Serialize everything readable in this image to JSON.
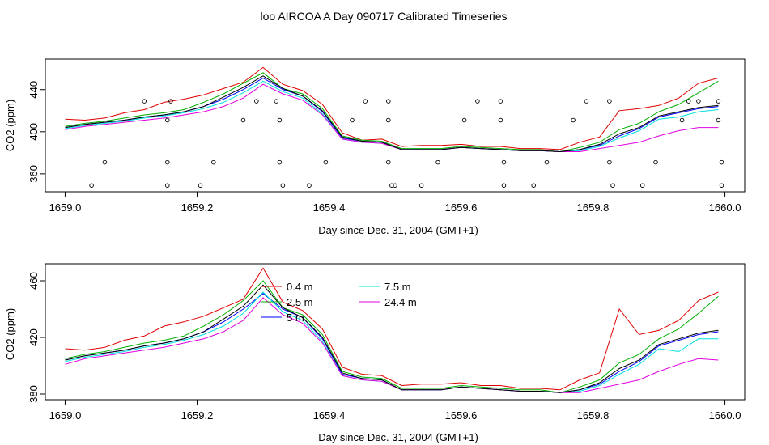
{
  "page": {
    "title": "loo AIRCOA A  Day 090717  Calibrated Timeseries"
  },
  "colors": {
    "0.4 m": "#e00000",
    "2.5 m": "#00b000",
    "5 m": "#0000ff",
    "7.5 m": "#00e0e0",
    "24.4 m": "#e000e0",
    "black": "#000000"
  },
  "chart_data": [
    {
      "type": "line",
      "title": "",
      "xlabel": "Day since Dec. 31, 2004 (GMT+1)",
      "ylabel": "CO2 (ppm)",
      "xlim": [
        1658.97,
        1660.03
      ],
      "ylim": [
        343,
        469
      ],
      "xticks": [
        "1659.0",
        "1659.2",
        "1659.4",
        "1659.6",
        "1659.8",
        "1660.0"
      ],
      "xtick_values": [
        1659.0,
        1659.2,
        1659.4,
        1659.6,
        1659.8,
        1660.0
      ],
      "yticks": [
        "360",
        "400",
        "440"
      ],
      "ytick_values": [
        360,
        400,
        440
      ],
      "x": [
        1659.0,
        1659.03,
        1659.06,
        1659.09,
        1659.12,
        1659.15,
        1659.18,
        1659.21,
        1659.24,
        1659.27,
        1659.3,
        1659.33,
        1659.36,
        1659.39,
        1659.42,
        1659.45,
        1659.48,
        1659.51,
        1659.54,
        1659.57,
        1659.6,
        1659.63,
        1659.66,
        1659.69,
        1659.72,
        1659.75,
        1659.78,
        1659.81,
        1659.84,
        1659.87,
        1659.9,
        1659.93,
        1659.96,
        1659.99
      ],
      "series": [
        {
          "name": "0.4 m",
          "color": "#e00000",
          "values": [
            412,
            411,
            413,
            418,
            421,
            428,
            431,
            435,
            441,
            447,
            461,
            445,
            439,
            426,
            399,
            392,
            393,
            386,
            387,
            387,
            388,
            386,
            386,
            384,
            384,
            383,
            390,
            395,
            420,
            422,
            425,
            432,
            446,
            451
          ]
        },
        {
          "name": "2.5 m",
          "color": "#00b000",
          "values": [
            405,
            408,
            410,
            413,
            416,
            418,
            421,
            428,
            436,
            446,
            456,
            441,
            436,
            422,
            396,
            392,
            391,
            384,
            384,
            384,
            386,
            385,
            384,
            383,
            383,
            381,
            385,
            390,
            402,
            408,
            419,
            426,
            437,
            448
          ]
        },
        {
          "name": "5 m",
          "color": "#0000ff",
          "values": [
            404,
            407,
            409,
            411,
            414,
            416,
            419,
            424,
            431,
            440,
            451,
            440,
            434,
            419,
            394,
            391,
            390,
            383,
            383,
            383,
            385,
            384,
            383,
            382,
            382,
            381,
            383,
            387,
            396,
            403,
            414,
            418,
            422,
            424
          ]
        },
        {
          "name": "7.5 m",
          "color": "#00e0e0",
          "values": [
            403,
            406,
            408,
            410,
            413,
            415,
            418,
            422,
            428,
            437,
            448,
            438,
            432,
            417,
            393,
            390,
            389,
            383,
            383,
            383,
            385,
            384,
            383,
            382,
            382,
            381,
            382,
            386,
            394,
            401,
            412,
            414,
            419,
            421
          ]
        },
        {
          "name": "24.4 m",
          "color": "#e000e0",
          "values": [
            402,
            405,
            407,
            409,
            411,
            413,
            416,
            419,
            424,
            432,
            445,
            436,
            430,
            416,
            393,
            390,
            389,
            383,
            383,
            383,
            385,
            384,
            383,
            382,
            382,
            381,
            381,
            384,
            387,
            390,
            396,
            401,
            404,
            404
          ]
        },
        {
          "name": "",
          "color": "#000000",
          "values": [
            404,
            407,
            409,
            411,
            414,
            416,
            419,
            424,
            433,
            442,
            453,
            441,
            434,
            420,
            395,
            391,
            390,
            383,
            383,
            383,
            385,
            384,
            383,
            382,
            382,
            381,
            383,
            388,
            398,
            404,
            415,
            419,
            423,
            425
          ]
        }
      ],
      "status_points": {
        "x": [
          1659.04,
          1659.06,
          1659.12,
          1659.155,
          1659.155,
          1659.155,
          1659.16,
          1659.205,
          1659.225,
          1659.27,
          1659.29,
          1659.32,
          1659.325,
          1659.325,
          1659.33,
          1659.37,
          1659.395,
          1659.435,
          1659.455,
          1659.49,
          1659.49,
          1659.49,
          1659.495,
          1659.5,
          1659.54,
          1659.565,
          1659.605,
          1659.625,
          1659.66,
          1659.66,
          1659.665,
          1659.665,
          1659.71,
          1659.73,
          1659.77,
          1659.79,
          1659.825,
          1659.825,
          1659.83,
          1659.875,
          1659.895,
          1659.935,
          1659.945,
          1659.96,
          1659.99,
          1659.99,
          1659.995,
          1659.995
        ],
        "y": [
          349,
          371,
          429,
          349,
          371,
          411,
          429,
          349,
          371,
          411,
          429,
          429,
          411,
          371,
          349,
          349,
          371,
          411,
          429,
          429,
          411,
          371,
          349,
          349,
          349,
          371,
          411,
          429,
          429,
          411,
          371,
          349,
          349,
          371,
          411,
          429,
          429,
          371,
          349,
          349,
          371,
          411,
          429,
          429,
          429,
          411,
          371,
          349
        ]
      }
    },
    {
      "type": "line",
      "title": "",
      "xlabel": "Day since Dec. 31, 2004 (GMT+1)",
      "ylabel": "CO2 (ppm)",
      "xlim": [
        1658.97,
        1660.03
      ],
      "ylim": [
        376,
        472
      ],
      "xticks": [
        "1659.0",
        "1659.2",
        "1659.4",
        "1659.6",
        "1659.8",
        "1660.0"
      ],
      "xtick_values": [
        1659.0,
        1659.2,
        1659.4,
        1659.6,
        1659.8,
        1660.0
      ],
      "yticks": [
        "380",
        "420",
        "460"
      ],
      "ytick_values": [
        380,
        420,
        460
      ],
      "legend": [
        "0.4 m",
        "2.5 m",
        "5 m",
        "7.5 m",
        "24.4 m"
      ],
      "legend_placement": "top-center",
      "x": [
        1659.0,
        1659.03,
        1659.06,
        1659.09,
        1659.12,
        1659.15,
        1659.18,
        1659.21,
        1659.24,
        1659.27,
        1659.3,
        1659.33,
        1659.36,
        1659.39,
        1659.42,
        1659.45,
        1659.48,
        1659.51,
        1659.54,
        1659.57,
        1659.6,
        1659.63,
        1659.66,
        1659.69,
        1659.72,
        1659.75,
        1659.78,
        1659.81,
        1659.84,
        1659.87,
        1659.9,
        1659.93,
        1659.96,
        1659.99
      ],
      "series": [
        {
          "name": "0.4 m",
          "color": "#e00000",
          "values": [
            412,
            411,
            413,
            418,
            421,
            428,
            431,
            435,
            441,
            447,
            469,
            445,
            439,
            426,
            399,
            394,
            393,
            386,
            387,
            387,
            388,
            386,
            386,
            384,
            384,
            383,
            390,
            395,
            440,
            422,
            425,
            432,
            446,
            452
          ]
        },
        {
          "name": "2.5 m",
          "color": "#00b000",
          "values": [
            405,
            408,
            410,
            413,
            416,
            418,
            421,
            428,
            436,
            446,
            460,
            441,
            436,
            422,
            396,
            392,
            391,
            384,
            384,
            384,
            386,
            385,
            384,
            383,
            383,
            381,
            385,
            390,
            402,
            408,
            419,
            426,
            437,
            449
          ]
        },
        {
          "name": "5 m",
          "color": "#0000ff",
          "values": [
            404,
            407,
            409,
            411,
            414,
            416,
            419,
            424,
            431,
            440,
            451,
            440,
            434,
            419,
            394,
            391,
            390,
            383,
            383,
            383,
            385,
            384,
            383,
            382,
            382,
            381,
            383,
            387,
            396,
            403,
            414,
            418,
            422,
            424
          ]
        },
        {
          "name": "7.5 m",
          "color": "#00e0e0",
          "values": [
            403,
            406,
            408,
            410,
            413,
            415,
            418,
            422,
            428,
            437,
            452,
            438,
            432,
            417,
            393,
            390,
            389,
            383,
            383,
            383,
            385,
            384,
            383,
            382,
            382,
            381,
            382,
            386,
            394,
            401,
            412,
            410,
            419,
            419
          ]
        },
        {
          "name": "24.4 m",
          "color": "#e000e0",
          "values": [
            401,
            405,
            407,
            409,
            411,
            413,
            416,
            419,
            424,
            432,
            448,
            436,
            430,
            416,
            393,
            390,
            389,
            383,
            383,
            383,
            385,
            384,
            383,
            382,
            382,
            381,
            381,
            384,
            387,
            390,
            396,
            401,
            405,
            404
          ]
        },
        {
          "name": "",
          "color": "#000000",
          "values": [
            404,
            407,
            409,
            411,
            414,
            416,
            419,
            424,
            433,
            442,
            457,
            441,
            434,
            420,
            395,
            391,
            390,
            383,
            383,
            383,
            385,
            384,
            383,
            382,
            382,
            381,
            383,
            388,
            398,
            404,
            415,
            419,
            423,
            425
          ]
        }
      ]
    }
  ]
}
